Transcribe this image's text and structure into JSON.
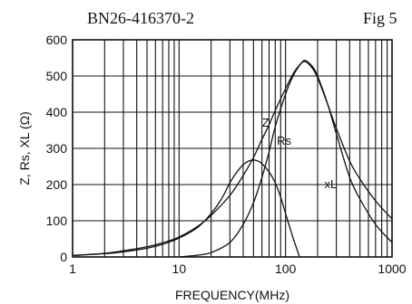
{
  "chart_data": {
    "type": "line",
    "title": "BN26-416370-2",
    "figure_label": "Fig 5",
    "xlabel": "FREQUENCY(MHz)",
    "ylabel": "Z, Rs, XL (Ω)",
    "x_scale": "log",
    "xlim": [
      1,
      1000
    ],
    "ylim": [
      0,
      600
    ],
    "x_ticks": [
      1,
      10,
      100,
      1000
    ],
    "y_ticks": [
      0,
      100,
      200,
      300,
      400,
      500,
      600
    ],
    "grid": true,
    "series": [
      {
        "name": "Z",
        "x": [
          1,
          2,
          3,
          5,
          7,
          10,
          15,
          20,
          30,
          40,
          50,
          60,
          70,
          80,
          100,
          120,
          140,
          150,
          160,
          180,
          200,
          250,
          300,
          400,
          500,
          700,
          1000
        ],
        "values": [
          4,
          10,
          17,
          28,
          39,
          55,
          85,
          115,
          170,
          225,
          275,
          325,
          365,
          405,
          465,
          510,
          535,
          540,
          537,
          520,
          495,
          420,
          355,
          265,
          215,
          155,
          105
        ]
      },
      {
        "name": "Rs",
        "x": [
          10,
          15,
          20,
          30,
          40,
          50,
          60,
          70,
          80,
          100,
          120,
          140,
          150,
          160,
          180,
          200,
          250,
          300,
          400,
          500,
          700,
          1000
        ],
        "values": [
          0,
          5,
          12,
          40,
          90,
          150,
          220,
          290,
          360,
          450,
          505,
          535,
          543,
          540,
          525,
          500,
          420,
          340,
          220,
          160,
          90,
          40
        ]
      },
      {
        "name": "XL",
        "x": [
          1,
          2,
          3,
          5,
          7,
          10,
          15,
          20,
          25,
          30,
          35,
          40,
          45,
          50,
          55,
          60,
          70,
          80,
          90,
          100,
          110,
          120,
          130,
          135
        ],
        "values": [
          4,
          9,
          14,
          24,
          35,
          52,
          82,
          120,
          160,
          205,
          235,
          255,
          265,
          268,
          265,
          258,
          235,
          205,
          165,
          120,
          80,
          45,
          15,
          0
        ]
      }
    ],
    "curve_labels": [
      {
        "text": "Z",
        "x": 65,
        "y": 360
      },
      {
        "text": "Rs",
        "x": 97,
        "y": 310
      },
      {
        "text": "xL",
        "x": 265,
        "y": 190
      }
    ]
  }
}
